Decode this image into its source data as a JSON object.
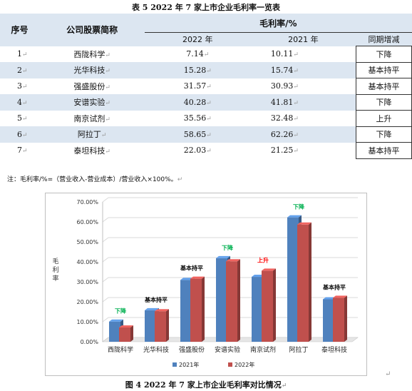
{
  "table_caption": "表 5  2022 年 7 家上市企业毛利率一览表",
  "headers": {
    "index": "序号",
    "company": "公司股票简称",
    "gross_margin": "毛利率/%",
    "y2022": "2022 年",
    "y2021": "2021 年",
    "change": "同期增减"
  },
  "rows": [
    {
      "idx": "1",
      "name": "西陇科学",
      "y2022": "7.14",
      "y2021": "10.11",
      "change": "下降"
    },
    {
      "idx": "2",
      "name": "光华科技",
      "y2022": "15.28",
      "y2021": "15.74",
      "change": "基本持平"
    },
    {
      "idx": "3",
      "name": "强盛股份",
      "y2022": "31.57",
      "y2021": "30.93",
      "change": "基本持平"
    },
    {
      "idx": "4",
      "name": "安谱实验",
      "y2022": "40.28",
      "y2021": "41.81",
      "change": "下降"
    },
    {
      "idx": "5",
      "name": "南京试剂",
      "y2022": "35.56",
      "y2021": "32.48",
      "change": "上升"
    },
    {
      "idx": "6",
      "name": "阿拉丁",
      "y2022": "58.65",
      "y2021": "62.26",
      "change": "下降"
    },
    {
      "idx": "7",
      "name": "泰坦科技",
      "y2022": "22.03",
      "y2021": "21.25",
      "change": "基本持平"
    }
  ],
  "note": "注：毛利率/%=（营业收入-营业成本）/营业收入×100%。",
  "figure_caption": "图 4  2022 年 7 家上市企业毛利率对比情况",
  "chart_data": {
    "type": "bar",
    "categories": [
      "西陇科学",
      "光华科技",
      "强盛股份",
      "安谱实验",
      "南京试剂",
      "阿拉丁",
      "泰坦科技"
    ],
    "series": [
      {
        "name": "2021年",
        "values": [
          10.11,
          15.74,
          30.93,
          41.81,
          32.48,
          62.26,
          21.25
        ],
        "color": "#4f81bd"
      },
      {
        "name": "2022年",
        "values": [
          7.14,
          15.28,
          31.57,
          40.28,
          35.56,
          58.65,
          22.03
        ],
        "color": "#c0504d"
      }
    ],
    "annotations": [
      "下降",
      "基本持平",
      "基本持平",
      "下降",
      "上升",
      "下降",
      "基本持平"
    ],
    "annotation_colors": {
      "下降": "#00b050",
      "基本持平": "#000000",
      "上升": "#ff0000"
    },
    "ylabel": "毛利率",
    "ylim": [
      0,
      70
    ],
    "yticks": [
      "0.00%",
      "10.00%",
      "20.00%",
      "30.00%",
      "40.00%",
      "50.00%",
      "60.00%",
      "70.00%"
    ],
    "grid": true,
    "legend": "bottom",
    "style": "3d-bar"
  }
}
